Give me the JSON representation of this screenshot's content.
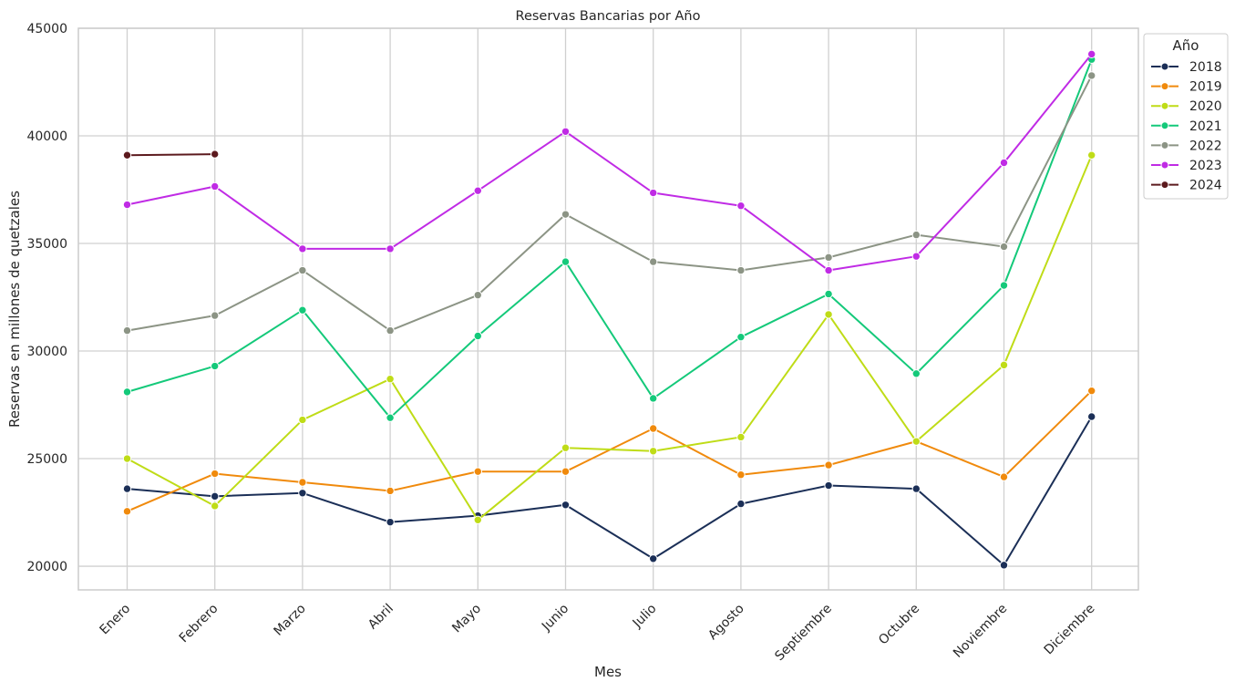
{
  "chart_data": {
    "type": "line",
    "title": "Reservas Bancarias por Año",
    "xlabel": "Mes",
    "ylabel": "Reservas en millones de quetzales",
    "categories": [
      "Enero",
      "Febrero",
      "Marzo",
      "Abril",
      "Mayo",
      "Junio",
      "Julio",
      "Agosto",
      "Septiembre",
      "Octubre",
      "Noviembre",
      "Diciembre"
    ],
    "ylim": [
      18900,
      45000
    ],
    "yticks": [
      20000,
      25000,
      30000,
      35000,
      40000,
      45000
    ],
    "grid": true,
    "legend": {
      "title": "Año",
      "placement": "outside top-right"
    },
    "series": [
      {
        "name": "2018",
        "color": "#1b2f57",
        "values": [
          23600,
          23250,
          23400,
          22050,
          22350,
          22850,
          20350,
          22900,
          23750,
          23600,
          20050,
          26950
        ]
      },
      {
        "name": "2019",
        "color": "#f08a0c",
        "values": [
          22550,
          24300,
          23900,
          23500,
          24400,
          24400,
          26400,
          24250,
          24700,
          25800,
          24150,
          28150
        ]
      },
      {
        "name": "2020",
        "color": "#bfdc17",
        "values": [
          25000,
          22800,
          26800,
          28700,
          22150,
          25500,
          25350,
          26000,
          31700,
          25800,
          29350,
          39100
        ]
      },
      {
        "name": "2021",
        "color": "#14c97a",
        "values": [
          28100,
          29300,
          31900,
          26900,
          30700,
          34150,
          27800,
          30650,
          32650,
          28950,
          33050,
          43550
        ]
      },
      {
        "name": "2022",
        "color": "#8c9485",
        "values": [
          30950,
          31650,
          33750,
          30950,
          32600,
          36350,
          34150,
          33750,
          34350,
          35400,
          34850,
          42800
        ]
      },
      {
        "name": "2023",
        "color": "#c02be5",
        "values": [
          36800,
          37650,
          34750,
          34750,
          37450,
          40200,
          37350,
          36750,
          33750,
          34400,
          38750,
          43800
        ]
      },
      {
        "name": "2024",
        "color": "#5c1a1e",
        "values": [
          39100,
          39150,
          null,
          null,
          null,
          null,
          null,
          null,
          null,
          null,
          null,
          null
        ]
      }
    ]
  }
}
